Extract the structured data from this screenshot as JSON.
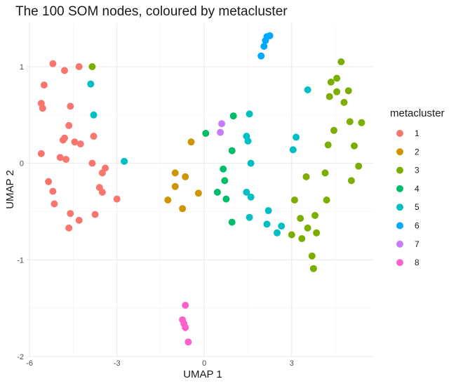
{
  "chart_data": {
    "type": "scatter",
    "title": "The 100 SOM nodes, coloured by metacluster",
    "xlabel": "UMAP 1",
    "ylabel": "UMAP 2",
    "xlim": [
      -6.1,
      5.8
    ],
    "ylim": [
      -2.0,
      1.45
    ],
    "x_ticks": [
      -6,
      -3,
      0,
      3
    ],
    "y_ticks": [
      -2,
      -1,
      0,
      1
    ],
    "x_tick_labels": [
      "-6",
      "-3",
      "0",
      "3"
    ],
    "y_tick_labels": [
      "-2",
      "-1",
      "0",
      "1"
    ],
    "grid": true,
    "legend": {
      "title": "metacluster",
      "position": "right"
    },
    "series": [
      {
        "name": "1",
        "color": "#F8766D",
        "points": [
          [
            -5.2,
            1.03
          ],
          [
            -4.3,
            1.0
          ],
          [
            -4.8,
            0.96
          ],
          [
            -5.5,
            0.81
          ],
          [
            -5.6,
            0.62
          ],
          [
            -5.55,
            0.57
          ],
          [
            -4.6,
            0.59
          ],
          [
            -4.65,
            0.39
          ],
          [
            -4.8,
            0.26
          ],
          [
            -4.85,
            0.24
          ],
          [
            -4.45,
            0.22
          ],
          [
            -4.25,
            0.2
          ],
          [
            -3.8,
            0.28
          ],
          [
            -5.6,
            0.1
          ],
          [
            -4.95,
            0.06
          ],
          [
            -4.75,
            0.04
          ],
          [
            -3.85,
            0.0
          ],
          [
            -3.4,
            -0.05
          ],
          [
            -3.5,
            -0.1
          ],
          [
            -5.35,
            -0.19
          ],
          [
            -5.2,
            -0.29
          ],
          [
            -3.6,
            -0.25
          ],
          [
            -3.5,
            -0.3
          ],
          [
            -3.0,
            -0.37
          ],
          [
            -5.15,
            -0.42
          ],
          [
            -4.6,
            -0.52
          ],
          [
            -3.75,
            -0.53
          ],
          [
            -4.3,
            -0.59
          ],
          [
            -4.65,
            -0.67
          ]
        ]
      },
      {
        "name": "2",
        "color": "#CD9600",
        "points": [
          [
            -0.45,
            0.22
          ],
          [
            -1.0,
            -0.1
          ],
          [
            -0.65,
            -0.14
          ],
          [
            -1.0,
            -0.24
          ],
          [
            -0.2,
            -0.31
          ],
          [
            -1.25,
            -0.38
          ],
          [
            -0.75,
            -0.47
          ]
        ]
      },
      {
        "name": "3",
        "color": "#7CAE00",
        "points": [
          [
            -3.85,
            1.0
          ],
          [
            4.7,
            1.05
          ],
          [
            4.55,
            0.88
          ],
          [
            4.35,
            0.84
          ],
          [
            4.55,
            0.74
          ],
          [
            4.95,
            0.75
          ],
          [
            4.3,
            0.69
          ],
          [
            4.8,
            0.63
          ],
          [
            4.45,
            0.34
          ],
          [
            5.0,
            0.43
          ],
          [
            5.4,
            0.42
          ],
          [
            4.25,
            0.19
          ],
          [
            5.15,
            0.18
          ],
          [
            5.3,
            -0.03
          ],
          [
            3.5,
            -0.14
          ],
          [
            4.15,
            -0.1
          ],
          [
            5.05,
            -0.18
          ],
          [
            3.1,
            -0.38
          ],
          [
            4.2,
            -0.38
          ],
          [
            3.8,
            -0.54
          ],
          [
            3.3,
            -0.57
          ],
          [
            3.55,
            -0.67
          ],
          [
            3.85,
            -0.72
          ],
          [
            3.0,
            -0.74
          ],
          [
            3.35,
            -0.78
          ],
          [
            3.7,
            -0.96
          ],
          [
            3.75,
            -1.09
          ]
        ]
      },
      {
        "name": "4",
        "color": "#00BE67",
        "points": [
          [
            1.0,
            0.49
          ],
          [
            0.05,
            0.31
          ],
          [
            0.95,
            0.13
          ],
          [
            0.65,
            -0.06
          ],
          [
            0.7,
            -0.18
          ],
          [
            0.45,
            -0.3
          ],
          [
            0.75,
            -0.37
          ],
          [
            0.95,
            -0.61
          ]
        ]
      },
      {
        "name": "5",
        "color": "#00BFC4",
        "points": [
          [
            -3.9,
            0.82
          ],
          [
            3.55,
            0.76
          ],
          [
            -3.8,
            0.5
          ],
          [
            1.55,
            0.51
          ],
          [
            1.45,
            0.28
          ],
          [
            3.15,
            0.27
          ],
          [
            1.5,
            0.23
          ],
          [
            3.05,
            0.14
          ],
          [
            -2.75,
            0.02
          ],
          [
            1.6,
            0.0
          ],
          [
            1.45,
            -0.3
          ],
          [
            1.6,
            -0.35
          ],
          [
            2.2,
            -0.49
          ],
          [
            1.55,
            -0.56
          ],
          [
            2.15,
            -0.63
          ],
          [
            2.65,
            -0.65
          ],
          [
            2.5,
            -0.72
          ]
        ]
      },
      {
        "name": "6",
        "color": "#00A9FF",
        "points": [
          [
            2.25,
            1.32
          ],
          [
            2.15,
            1.31
          ],
          [
            2.1,
            1.27
          ],
          [
            2.05,
            1.21
          ],
          [
            1.95,
            1.11
          ]
        ]
      },
      {
        "name": "7",
        "color": "#C77CFF",
        "points": [
          [
            0.6,
            0.41
          ],
          [
            0.55,
            0.32
          ]
        ]
      },
      {
        "name": "8",
        "color": "#FF61CC",
        "points": [
          [
            -0.65,
            -1.47
          ],
          [
            -0.75,
            -1.62
          ],
          [
            -0.7,
            -1.66
          ],
          [
            -0.65,
            -1.7
          ],
          [
            -0.55,
            -1.85
          ]
        ]
      }
    ]
  }
}
